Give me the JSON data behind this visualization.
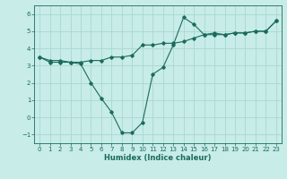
{
  "xlabel": "Humidex (Indice chaleur)",
  "bg_color": "#c8ece8",
  "grid_color": "#a8d8d0",
  "line_color": "#1a6b5a",
  "xlim": [
    -0.5,
    23.5
  ],
  "ylim": [
    -1.5,
    6.5
  ],
  "yticks": [
    -1,
    0,
    1,
    2,
    3,
    4,
    5,
    6
  ],
  "xticks": [
    0,
    1,
    2,
    3,
    4,
    5,
    6,
    7,
    8,
    9,
    10,
    11,
    12,
    13,
    14,
    15,
    16,
    17,
    18,
    19,
    20,
    21,
    22,
    23
  ],
  "line1_x": [
    0,
    1,
    2,
    3,
    4,
    5,
    6,
    7,
    8,
    9,
    10,
    11,
    12,
    13,
    14,
    15,
    16,
    17,
    18,
    19,
    20,
    21,
    22,
    23
  ],
  "line1_y": [
    3.5,
    3.2,
    3.2,
    3.2,
    3.1,
    2.0,
    1.1,
    0.3,
    -0.9,
    -0.9,
    -0.3,
    2.5,
    2.9,
    4.2,
    5.8,
    5.4,
    4.8,
    4.9,
    4.8,
    4.9,
    4.9,
    5.0,
    5.0,
    5.6
  ],
  "line2_x": [
    0,
    1,
    2,
    3,
    4,
    5,
    6,
    7,
    8,
    9,
    10,
    11,
    12,
    13,
    14,
    15,
    16,
    17,
    18,
    19,
    20,
    21,
    22,
    23
  ],
  "line2_y": [
    3.5,
    3.3,
    3.3,
    3.2,
    3.2,
    3.3,
    3.3,
    3.5,
    3.5,
    3.6,
    4.2,
    4.2,
    4.3,
    4.3,
    4.4,
    4.6,
    4.8,
    4.8,
    4.8,
    4.9,
    4.9,
    5.0,
    5.0,
    5.6
  ],
  "tick_fontsize": 5.0,
  "xlabel_fontsize": 6.0,
  "marker_size": 1.8,
  "line_width": 0.8
}
